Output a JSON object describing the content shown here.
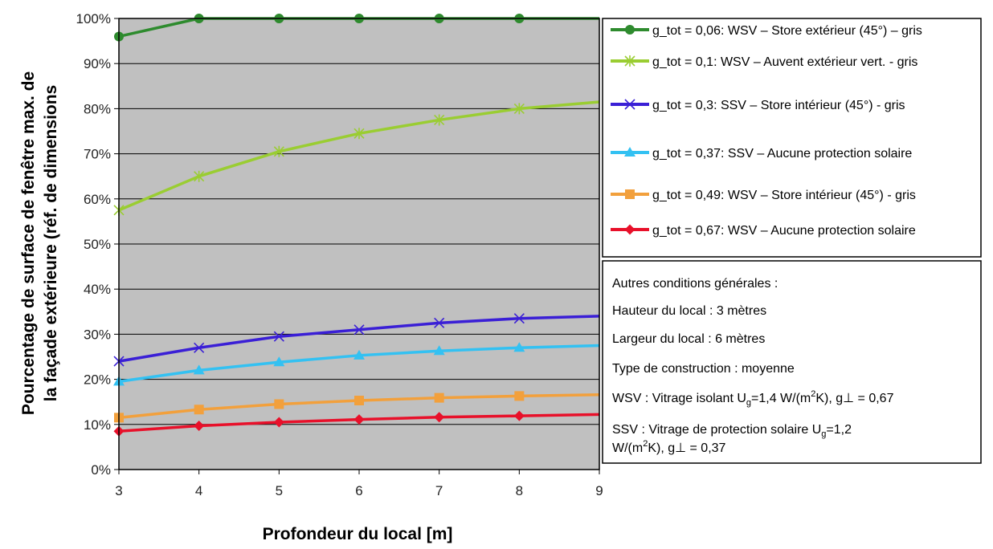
{
  "chart_data": {
    "type": "line",
    "xlabel": "Profondeur du local [m]",
    "ylabel_line1": "Pourcentage de surface de fenêtre max. de",
    "ylabel_line2": "la façade extérieure (réf. de dimensions",
    "x": [
      3,
      4,
      5,
      6,
      7,
      8,
      9
    ],
    "x_ticks": [
      "3",
      "4",
      "5",
      "6",
      "7",
      "8",
      "9"
    ],
    "y_ticks": [
      "0%",
      "10%",
      "20%",
      "30%",
      "40%",
      "50%",
      "60%",
      "70%",
      "80%",
      "90%",
      "100%"
    ],
    "ylim": [
      0,
      100
    ],
    "xlim": [
      3,
      9
    ],
    "grid": "horizontal",
    "plot_background": "#c0c0c0",
    "legend_position": "right",
    "series": [
      {
        "name": "g_tot = 0,06: WSV – Store extérieur (45°) – gris",
        "color": "#2e8b2e",
        "marker": "circle",
        "values": [
          96,
          100,
          100,
          100,
          100,
          100,
          100
        ]
      },
      {
        "name": "g_tot = 0,1: WSV – Auvent extérieur vert. - gris",
        "color": "#9acd32",
        "marker": "star",
        "values": [
          57.5,
          65,
          70.5,
          74.5,
          77.5,
          80,
          81.5
        ]
      },
      {
        "name": "g_tot = 0,3: SSV – Store intérieur (45°) - gris",
        "color": "#3a1fd6",
        "marker": "x",
        "values": [
          24,
          27,
          29.5,
          31,
          32.5,
          33.5,
          34
        ]
      },
      {
        "name": "g_tot = 0,37: SSV – Aucune protection solaire",
        "color": "#33c1f2",
        "marker": "triangle",
        "values": [
          19.5,
          22,
          23.8,
          25.3,
          26.3,
          27,
          27.5
        ]
      },
      {
        "name": "g_tot = 0,49: WSV – Store intérieur (45°) - gris",
        "color": "#f2a03c",
        "marker": "square",
        "values": [
          11.5,
          13.3,
          14.5,
          15.3,
          15.9,
          16.3,
          16.6
        ]
      },
      {
        "name": "g_tot = 0,67: WSV – Aucune protection solaire",
        "color": "#e8102a",
        "marker": "diamond",
        "values": [
          8.5,
          9.7,
          10.5,
          11.1,
          11.6,
          11.9,
          12.2
        ]
      }
    ]
  },
  "notes": {
    "title": "Autres conditions générales :",
    "height": "Hauteur du local : 3 mètres",
    "width": "Largeur du local : 6 mètres",
    "construction": "Type de construction : moyenne",
    "wsv_a": "WSV : Vitrage isolant U",
    "wsv_sub": "g",
    "wsv_b": "=1,4 W/(m",
    "wsv_sup": "2",
    "wsv_c": "K), g⊥ = 0,67",
    "ssv1_a": "SSV : Vitrage de protection solaire U",
    "ssv1_sub": "g",
    "ssv1_b": "=1,2",
    "ssv2_a": "W/(m",
    "ssv2_sup": "2",
    "ssv2_b": "K), g⊥ = 0,37"
  }
}
